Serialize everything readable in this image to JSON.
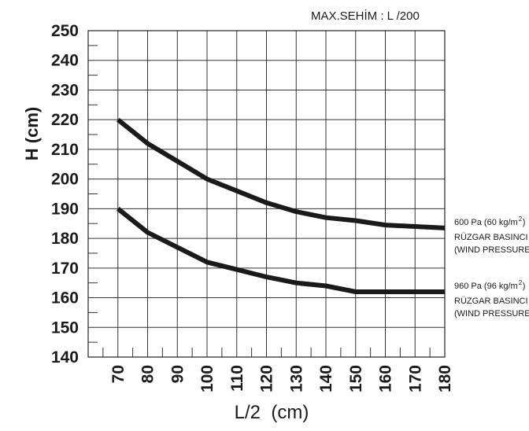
{
  "chart_data": {
    "type": "line",
    "title": "MAX.SEHİM :  L /200",
    "xlabel": "L/2  (cm)",
    "ylabel": "H (cm)",
    "xlim": [
      60,
      180
    ],
    "ylim": [
      140,
      250
    ],
    "x_ticks": [
      70,
      80,
      90,
      100,
      110,
      120,
      130,
      140,
      150,
      160,
      170,
      180
    ],
    "y_ticks": [
      140,
      150,
      160,
      170,
      180,
      190,
      200,
      210,
      220,
      230,
      240,
      250
    ],
    "grid": true,
    "series": [
      {
        "label_lines": [
          "600 Pa (60 kg/m",
          "RÜZGAR BASINCI",
          "(WIND PRESSURE)"
        ],
        "superscript": "2",
        "label_close": ")",
        "x": [
          70,
          80,
          90,
          100,
          110,
          120,
          130,
          140,
          150,
          160,
          170,
          180
        ],
        "y": [
          220,
          212,
          206,
          200,
          196,
          192,
          189,
          187,
          186,
          184.5,
          184,
          183.5
        ]
      },
      {
        "label_lines": [
          "960 Pa (96 kg/m",
          "RÜZGAR BASINCI",
          "(WIND PRESSURE)"
        ],
        "superscript": "2",
        "label_close": ")",
        "x": [
          70,
          80,
          90,
          100,
          110,
          120,
          130,
          140,
          150,
          160,
          170,
          180
        ],
        "y": [
          190,
          182,
          177,
          172,
          169.5,
          167,
          165,
          164,
          162,
          162,
          162,
          162
        ]
      }
    ]
  }
}
